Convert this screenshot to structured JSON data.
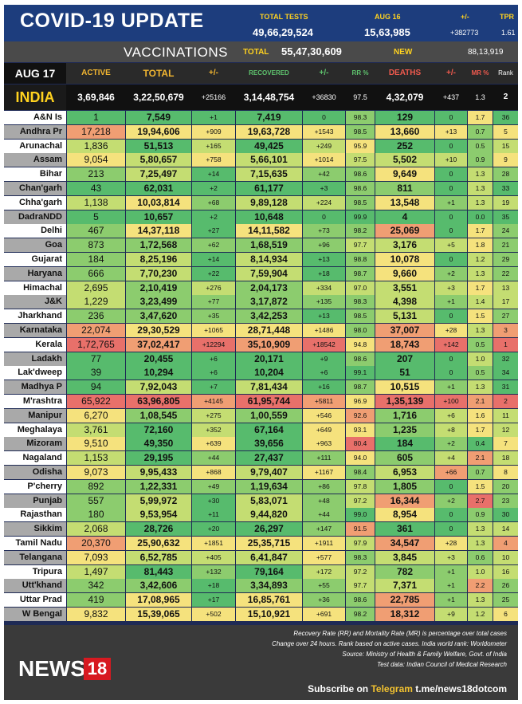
{
  "header": {
    "title": "COVID-19 UPDATE",
    "total_tests_label": "TOTAL TESTS",
    "total_tests_value": "49,66,29,524",
    "date_label": "AUG 16",
    "date_value": "15,63,985",
    "change_label": "+/-",
    "change_value": "+382773",
    "tpr_label": "TPR",
    "tpr_value": "1.61"
  },
  "vaccinations": {
    "label": "VACCINATIONS",
    "total_label": "TOTAL",
    "total_value": "55,47,30,609",
    "new_label": "NEW",
    "new_value": "88,13,919"
  },
  "columns": {
    "date": "AUG 17",
    "active": "ACTIVE",
    "total": "TOTAL",
    "total_change": "+/-",
    "recovered": "RECOVERED",
    "recovered_change": "+/-",
    "rr": "RR %",
    "deaths": "DEATHS",
    "deaths_change": "+/-",
    "mr": "MR %",
    "rank": "Rank"
  },
  "colors": {
    "deep_green": "#57bb6d",
    "green": "#8ccc6e",
    "light_green": "#c4dd72",
    "yellow": "#f5e27d",
    "light_red": "#f09e73",
    "red": "#e8706a"
  },
  "india": {
    "name": "INDIA",
    "active": "3,69,846",
    "total": "3,22,50,679",
    "total_change": "+25166",
    "recovered": "3,14,48,754",
    "recovered_change": "+36830",
    "rr": "97.5",
    "deaths": "4,32,079",
    "deaths_change": "+437",
    "mr": "1.3",
    "rank": "2"
  },
  "states": [
    {
      "name": "A&N Is",
      "active": "1",
      "total": "7,549",
      "total_change": "+1",
      "recovered": "7,419",
      "recovered_change": "0",
      "rr": "98.3",
      "deaths": "129",
      "deaths_change": "0",
      "mr": "1.7",
      "rank": "36"
    },
    {
      "name": "Andhra Pr",
      "active": "17,218",
      "total": "19,94,606",
      "total_change": "+909",
      "recovered": "19,63,728",
      "recovered_change": "+1543",
      "rr": "98.5",
      "deaths": "13,660",
      "deaths_change": "+13",
      "mr": "0.7",
      "rank": "5"
    },
    {
      "name": "Arunachal",
      "active": "1,836",
      "total": "51,513",
      "total_change": "+165",
      "recovered": "49,425",
      "recovered_change": "+249",
      "rr": "95.9",
      "deaths": "252",
      "deaths_change": "0",
      "mr": "0.5",
      "rank": "15"
    },
    {
      "name": "Assam",
      "active": "9,054",
      "total": "5,80,657",
      "total_change": "+758",
      "recovered": "5,66,101",
      "recovered_change": "+1014",
      "rr": "97.5",
      "deaths": "5,502",
      "deaths_change": "+10",
      "mr": "0.9",
      "rank": "9"
    },
    {
      "name": "Bihar",
      "active": "213",
      "total": "7,25,497",
      "total_change": "+14",
      "recovered": "7,15,635",
      "recovered_change": "+42",
      "rr": "98.6",
      "deaths": "9,649",
      "deaths_change": "0",
      "mr": "1.3",
      "rank": "28"
    },
    {
      "name": "Chan'garh",
      "active": "43",
      "total": "62,031",
      "total_change": "+2",
      "recovered": "61,177",
      "recovered_change": "+3",
      "rr": "98.6",
      "deaths": "811",
      "deaths_change": "0",
      "mr": "1.3",
      "rank": "33"
    },
    {
      "name": "Chha'garh",
      "active": "1,138",
      "total": "10,03,814",
      "total_change": "+68",
      "recovered": "9,89,128",
      "recovered_change": "+224",
      "rr": "98.5",
      "deaths": "13,548",
      "deaths_change": "+1",
      "mr": "1.3",
      "rank": "19"
    },
    {
      "name": "DadraNDD",
      "active": "5",
      "total": "10,657",
      "total_change": "+2",
      "recovered": "10,648",
      "recovered_change": "0",
      "rr": "99.9",
      "deaths": "4",
      "deaths_change": "0",
      "mr": "0.0",
      "rank": "35"
    },
    {
      "name": "Delhi",
      "active": "467",
      "total": "14,37,118",
      "total_change": "+27",
      "recovered": "14,11,582",
      "recovered_change": "+73",
      "rr": "98.2",
      "deaths": "25,069",
      "deaths_change": "0",
      "mr": "1.7",
      "rank": "24"
    },
    {
      "name": "Goa",
      "active": "873",
      "total": "1,72,568",
      "total_change": "+62",
      "recovered": "1,68,519",
      "recovered_change": "+96",
      "rr": "97.7",
      "deaths": "3,176",
      "deaths_change": "+5",
      "mr": "1.8",
      "rank": "21"
    },
    {
      "name": "Gujarat",
      "active": "184",
      "total": "8,25,196",
      "total_change": "+14",
      "recovered": "8,14,934",
      "recovered_change": "+13",
      "rr": "98.8",
      "deaths": "10,078",
      "deaths_change": "0",
      "mr": "1.2",
      "rank": "29"
    },
    {
      "name": "Haryana",
      "active": "666",
      "total": "7,70,230",
      "total_change": "+22",
      "recovered": "7,59,904",
      "recovered_change": "+18",
      "rr": "98.7",
      "deaths": "9,660",
      "deaths_change": "+2",
      "mr": "1.3",
      "rank": "22"
    },
    {
      "name": "Himachal",
      "active": "2,695",
      "total": "2,10,419",
      "total_change": "+276",
      "recovered": "2,04,173",
      "recovered_change": "+334",
      "rr": "97.0",
      "deaths": "3,551",
      "deaths_change": "+3",
      "mr": "1.7",
      "rank": "13"
    },
    {
      "name": "J&K",
      "active": "1,229",
      "total": "3,23,499",
      "total_change": "+77",
      "recovered": "3,17,872",
      "recovered_change": "+135",
      "rr": "98.3",
      "deaths": "4,398",
      "deaths_change": "+1",
      "mr": "1.4",
      "rank": "17"
    },
    {
      "name": "Jharkhand",
      "active": "236",
      "total": "3,47,620",
      "total_change": "+35",
      "recovered": "3,42,253",
      "recovered_change": "+13",
      "rr": "98.5",
      "deaths": "5,131",
      "deaths_change": "0",
      "mr": "1.5",
      "rank": "27"
    },
    {
      "name": "Karnataka",
      "active": "22,074",
      "total": "29,30,529",
      "total_change": "+1065",
      "recovered": "28,71,448",
      "recovered_change": "+1486",
      "rr": "98.0",
      "deaths": "37,007",
      "deaths_change": "+28",
      "mr": "1.3",
      "rank": "3"
    },
    {
      "name": "Kerala",
      "active": "1,72,765",
      "total": "37,02,417",
      "total_change": "+12294",
      "recovered": "35,10,909",
      "recovered_change": "+18542",
      "rr": "94.8",
      "deaths": "18,743",
      "deaths_change": "+142",
      "mr": "0.5",
      "rank": "1"
    },
    {
      "name": "Ladakh",
      "active": "77",
      "total": "20,455",
      "total_change": "+6",
      "recovered": "20,171",
      "recovered_change": "+9",
      "rr": "98.6",
      "deaths": "207",
      "deaths_change": "0",
      "mr": "1.0",
      "rank": "32"
    },
    {
      "name": "Lak'dweep",
      "active": "39",
      "total": "10,294",
      "total_change": "+6",
      "recovered": "10,204",
      "recovered_change": "+6",
      "rr": "99.1",
      "deaths": "51",
      "deaths_change": "0",
      "mr": "0.5",
      "rank": "34"
    },
    {
      "name": "Madhya P",
      "active": "94",
      "total": "7,92,043",
      "total_change": "+7",
      "recovered": "7,81,434",
      "recovered_change": "+16",
      "rr": "98.7",
      "deaths": "10,515",
      "deaths_change": "+1",
      "mr": "1.3",
      "rank": "31"
    },
    {
      "name": "M'rashtra",
      "active": "65,922",
      "total": "63,96,805",
      "total_change": "+4145",
      "recovered": "61,95,744",
      "recovered_change": "+5811",
      "rr": "96.9",
      "deaths": "1,35,139",
      "deaths_change": "+100",
      "mr": "2.1",
      "rank": "2"
    },
    {
      "name": "Manipur",
      "active": "6,270",
      "total": "1,08,545",
      "total_change": "+275",
      "recovered": "1,00,559",
      "recovered_change": "+546",
      "rr": "92.6",
      "deaths": "1,716",
      "deaths_change": "+6",
      "mr": "1.6",
      "rank": "11"
    },
    {
      "name": "Meghalaya",
      "active": "3,761",
      "total": "72,160",
      "total_change": "+352",
      "recovered": "67,164",
      "recovered_change": "+649",
      "rr": "93.1",
      "deaths": "1,235",
      "deaths_change": "+8",
      "mr": "1.7",
      "rank": "12"
    },
    {
      "name": "Mizoram",
      "active": "9,510",
      "total": "49,350",
      "total_change": "+639",
      "recovered": "39,656",
      "recovered_change": "+963",
      "rr": "80.4",
      "deaths": "184",
      "deaths_change": "+2",
      "mr": "0.4",
      "rank": "7"
    },
    {
      "name": "Nagaland",
      "active": "1,153",
      "total": "29,195",
      "total_change": "+44",
      "recovered": "27,437",
      "recovered_change": "+111",
      "rr": "94.0",
      "deaths": "605",
      "deaths_change": "+4",
      "mr": "2.1",
      "rank": "18"
    },
    {
      "name": "Odisha",
      "active": "9,073",
      "total": "9,95,433",
      "total_change": "+868",
      "recovered": "9,79,407",
      "recovered_change": "+1167",
      "rr": "98.4",
      "deaths": "6,953",
      "deaths_change": "+66",
      "mr": "0.7",
      "rank": "8"
    },
    {
      "name": "P'cherry",
      "active": "892",
      "total": "1,22,331",
      "total_change": "+49",
      "recovered": "1,19,634",
      "recovered_change": "+86",
      "rr": "97.8",
      "deaths": "1,805",
      "deaths_change": "0",
      "mr": "1.5",
      "rank": "20"
    },
    {
      "name": "Punjab",
      "active": "557",
      "total": "5,99,972",
      "total_change": "+30",
      "recovered": "5,83,071",
      "recovered_change": "+48",
      "rr": "97.2",
      "deaths": "16,344",
      "deaths_change": "+2",
      "mr": "2.7",
      "rank": "23"
    },
    {
      "name": "Rajasthan",
      "active": "180",
      "total": "9,53,954",
      "total_change": "+11",
      "recovered": "9,44,820",
      "recovered_change": "+44",
      "rr": "99.0",
      "deaths": "8,954",
      "deaths_change": "0",
      "mr": "0.9",
      "rank": "30"
    },
    {
      "name": "Sikkim",
      "active": "2,068",
      "total": "28,726",
      "total_change": "+20",
      "recovered": "26,297",
      "recovered_change": "+147",
      "rr": "91.5",
      "deaths": "361",
      "deaths_change": "0",
      "mr": "1.3",
      "rank": "14"
    },
    {
      "name": "Tamil Nadu",
      "active": "20,370",
      "total": "25,90,632",
      "total_change": "+1851",
      "recovered": "25,35,715",
      "recovered_change": "+1911",
      "rr": "97.9",
      "deaths": "34,547",
      "deaths_change": "+28",
      "mr": "1.3",
      "rank": "4"
    },
    {
      "name": "Telangana",
      "active": "7,093",
      "total": "6,52,785",
      "total_change": "+405",
      "recovered": "6,41,847",
      "recovered_change": "+577",
      "rr": "98.3",
      "deaths": "3,845",
      "deaths_change": "+3",
      "mr": "0.6",
      "rank": "10"
    },
    {
      "name": "Tripura",
      "active": "1,497",
      "total": "81,443",
      "total_change": "+132",
      "recovered": "79,164",
      "recovered_change": "+172",
      "rr": "97.2",
      "deaths": "782",
      "deaths_change": "+1",
      "mr": "1.0",
      "rank": "16"
    },
    {
      "name": "Utt'khand",
      "active": "342",
      "total": "3,42,606",
      "total_change": "+18",
      "recovered": "3,34,893",
      "recovered_change": "+55",
      "rr": "97.7",
      "deaths": "7,371",
      "deaths_change": "+1",
      "mr": "2.2",
      "rank": "26"
    },
    {
      "name": "Uttar Prad",
      "active": "419",
      "total": "17,08,965",
      "total_change": "+17",
      "recovered": "16,85,761",
      "recovered_change": "+36",
      "rr": "98.6",
      "deaths": "22,785",
      "deaths_change": "+1",
      "mr": "1.3",
      "rank": "25"
    },
    {
      "name": "W Bengal",
      "active": "9,832",
      "total": "15,39,065",
      "total_change": "+502",
      "recovered": "15,10,921",
      "recovered_change": "+691",
      "rr": "98.2",
      "deaths": "18,312",
      "deaths_change": "+9",
      "mr": "1.2",
      "rank": "6"
    }
  ],
  "footer": {
    "logo_text": "NEWS",
    "logo_number": "18",
    "note1": "Recovery Rate (RR) and Mortality Rate (MR) is percentage over total cases",
    "note2": "Change over 24 hours. Rank based on active cases. India world rank: Worldometer",
    "note3": "Source: Ministry of Health & Family Welfare, Govt. of India",
    "note4": "Test data: Indian Council of Medical Research",
    "subscribe_prefix": "Subscribe on",
    "subscribe_channel": "Telegram",
    "subscribe_link": "t.me/news18dotcom"
  }
}
